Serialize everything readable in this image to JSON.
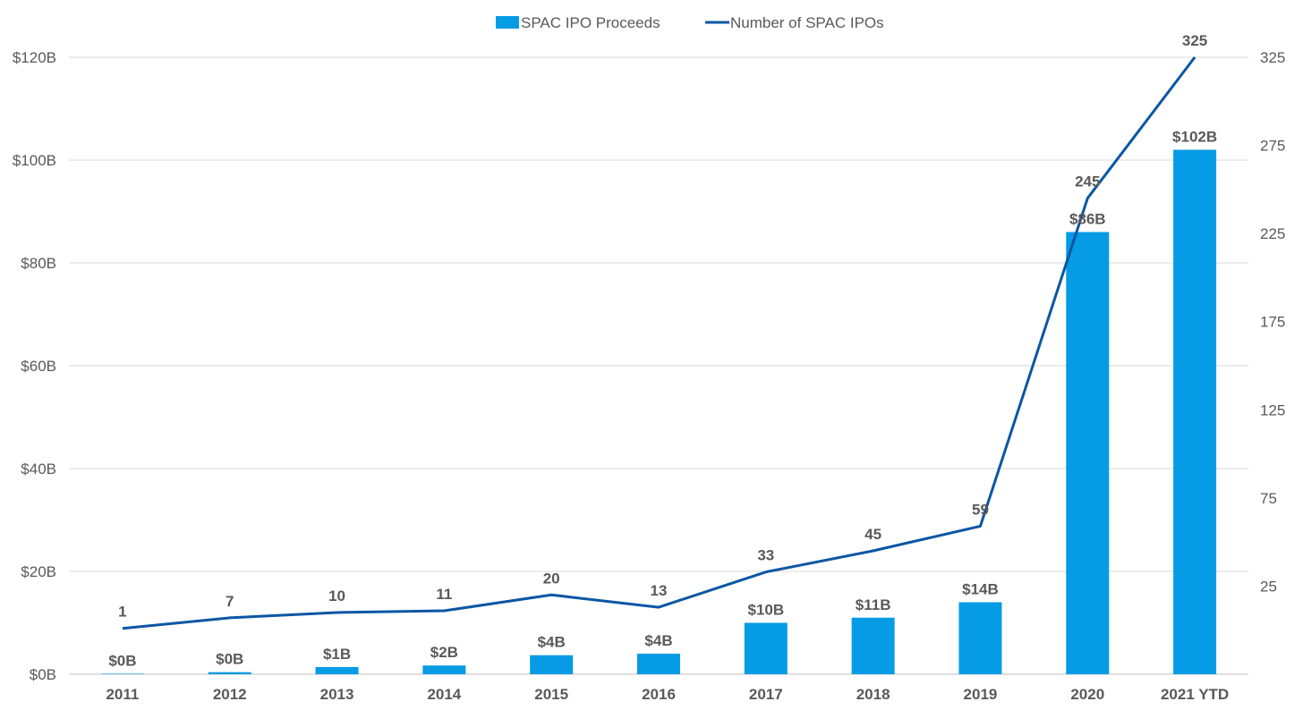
{
  "chart_data": {
    "type": "bar+line",
    "categories": [
      "2011",
      "2012",
      "2013",
      "2014",
      "2015",
      "2016",
      "2017",
      "2018",
      "2019",
      "2020",
      "2021 YTD"
    ],
    "series": [
      {
        "name": "SPAC IPO Proceeds",
        "type": "bar",
        "axis": "left",
        "color": "#069BE5",
        "values": [
          0.1,
          0.4,
          1.4,
          1.7,
          3.7,
          4.0,
          10.0,
          11.0,
          14.0,
          86.0,
          102.0
        ],
        "labels": [
          "$0B",
          "$0B",
          "$1B",
          "$2B",
          "$4B",
          "$4B",
          "$10B",
          "$11B",
          "$14B",
          "$86B",
          "$102B"
        ]
      },
      {
        "name": "Number of SPAC IPOs",
        "type": "line",
        "axis": "right",
        "color": "#0B56A4",
        "values": [
          1,
          7,
          10,
          11,
          20,
          13,
          33,
          45,
          59,
          245,
          325
        ],
        "labels": [
          "1",
          "7",
          "10",
          "11",
          "20",
          "13",
          "33",
          "45",
          "59",
          "245",
          "325"
        ]
      }
    ],
    "left_axis": {
      "ylim": [
        0,
        120
      ],
      "ticks": [
        0,
        20,
        40,
        60,
        80,
        100,
        120
      ],
      "tick_labels": [
        "$0B",
        "$20B",
        "$40B",
        "$60B",
        "$80B",
        "$100B",
        "$120B"
      ]
    },
    "right_axis": {
      "ylim": [
        -25,
        325
      ],
      "ticks": [
        25,
        75,
        125,
        175,
        225,
        275,
        325
      ],
      "tick_labels": [
        "25",
        "75",
        "125",
        "175",
        "225",
        "275",
        "325"
      ]
    },
    "grid": true,
    "legend": "top-center"
  }
}
